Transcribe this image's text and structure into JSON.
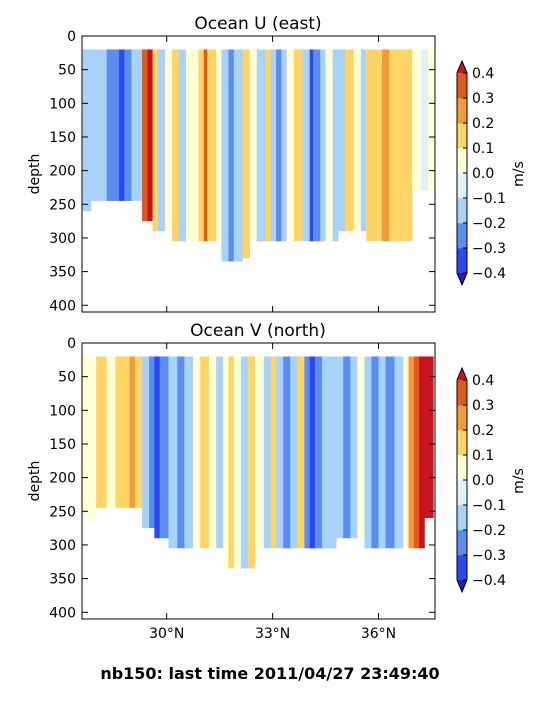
{
  "footer": "nb150: last time 2011/04/27 23:49:40",
  "colors": {
    "levels": [
      -0.4,
      -0.3,
      -0.2,
      -0.1,
      0.0,
      0.1,
      0.2,
      0.3,
      0.4
    ],
    "bins": [
      "#2e48f0",
      "#5a8df0",
      "#a9d2f8",
      "#dff2fb",
      "#ffffd6",
      "#ffd466",
      "#f39a3c",
      "#e05a1c"
    ],
    "under": "#1f1fb0",
    "over": "#c8141e"
  },
  "chart_data": [
    {
      "type": "heatmap",
      "title": "Ocean U (east)",
      "ylabel": "depth",
      "cbar_label": "m/s",
      "ylim": [
        410,
        0
      ],
      "yticks": [
        0,
        50,
        100,
        150,
        200,
        250,
        300,
        350,
        400
      ],
      "xlim": [
        27.6,
        37.6
      ],
      "xticks": [
        {
          "value": 30,
          "label": "30°N"
        },
        {
          "value": 33,
          "label": "33°N"
        },
        {
          "value": 36,
          "label": "36°N"
        }
      ],
      "cbar_ticks": [
        "0.4",
        "0.3",
        "0.2",
        "0.1",
        "0.0",
        "−0.1",
        "−0.2",
        "−0.3",
        "−0.4"
      ],
      "sections": [
        {
          "x": 27.62,
          "value": -0.15,
          "depth": 260
        },
        {
          "x": 27.85,
          "value": -0.12,
          "depth": 245
        },
        {
          "x": 28.3,
          "value": -0.22,
          "depth": 245
        },
        {
          "x": 28.65,
          "value": -0.35,
          "depth": 245
        },
        {
          "x": 28.8,
          "value": -0.25,
          "depth": 245
        },
        {
          "x": 29.0,
          "value": -0.15,
          "depth": 245
        },
        {
          "x": 29.3,
          "value": 0.3,
          "depth": 275
        },
        {
          "x": 29.45,
          "value": 0.42,
          "depth": 275
        },
        {
          "x": 29.6,
          "value": 0.15,
          "depth": 290
        },
        {
          "x": 29.75,
          "value": -0.12,
          "depth": 290
        },
        {
          "x": 29.95,
          "value": 0.0,
          "depth": 290
        },
        {
          "x": 30.15,
          "value": 0.15,
          "depth": 305
        },
        {
          "x": 30.35,
          "value": -0.12,
          "depth": 305
        },
        {
          "x": 30.55,
          "value": 0.05,
          "depth": 305
        },
        {
          "x": 30.9,
          "value": 0.18,
          "depth": 305
        },
        {
          "x": 31.05,
          "value": 0.32,
          "depth": 305
        },
        {
          "x": 31.15,
          "value": 0.15,
          "depth": 305
        },
        {
          "x": 31.4,
          "value": 0.0,
          "depth": 305
        },
        {
          "x": 31.55,
          "value": -0.12,
          "depth": 335
        },
        {
          "x": 31.75,
          "value": -0.25,
          "depth": 335
        },
        {
          "x": 31.9,
          "value": -0.12,
          "depth": 335
        },
        {
          "x": 32.15,
          "value": 0.15,
          "depth": 330
        },
        {
          "x": 32.35,
          "value": 0.05,
          "depth": 305
        },
        {
          "x": 32.55,
          "value": -0.12,
          "depth": 305
        },
        {
          "x": 32.8,
          "value": 0.15,
          "depth": 305
        },
        {
          "x": 32.95,
          "value": -0.15,
          "depth": 305
        },
        {
          "x": 33.1,
          "value": -0.22,
          "depth": 305
        },
        {
          "x": 33.25,
          "value": -0.12,
          "depth": 305
        },
        {
          "x": 33.4,
          "value": 0.0,
          "depth": 305
        },
        {
          "x": 33.6,
          "value": 0.15,
          "depth": 305
        },
        {
          "x": 33.85,
          "value": -0.12,
          "depth": 305
        },
        {
          "x": 34.05,
          "value": -0.35,
          "depth": 305
        },
        {
          "x": 34.15,
          "value": -0.25,
          "depth": 305
        },
        {
          "x": 34.35,
          "value": -0.12,
          "depth": 305
        },
        {
          "x": 34.5,
          "value": 0.0,
          "depth": 305
        },
        {
          "x": 34.7,
          "value": -0.2,
          "depth": 305
        },
        {
          "x": 34.85,
          "value": -0.12,
          "depth": 290
        },
        {
          "x": 35.05,
          "value": 0.15,
          "depth": 290
        },
        {
          "x": 35.3,
          "value": 0.05,
          "depth": 290
        },
        {
          "x": 35.5,
          "value": -0.12,
          "depth": 290
        },
        {
          "x": 35.65,
          "value": 0.15,
          "depth": 305
        },
        {
          "x": 35.9,
          "value": 0.18,
          "depth": 305
        },
        {
          "x": 36.1,
          "value": 0.22,
          "depth": 305
        },
        {
          "x": 36.3,
          "value": 0.15,
          "depth": 305
        },
        {
          "x": 36.6,
          "value": 0.18,
          "depth": 305
        },
        {
          "x": 36.95,
          "value": 0.05,
          "depth": 230
        },
        {
          "x": 37.2,
          "value": -0.05,
          "depth": 230
        },
        {
          "x": 37.4,
          "value": 0.05,
          "depth": 230
        }
      ]
    },
    {
      "type": "heatmap",
      "title": "Ocean V (north)",
      "ylabel": "depth",
      "cbar_label": "m/s",
      "ylim": [
        410,
        0
      ],
      "yticks": [
        0,
        50,
        100,
        150,
        200,
        250,
        300,
        350,
        400
      ],
      "xlim": [
        27.6,
        37.6
      ],
      "xticks": [
        {
          "value": 30,
          "label": "30°N"
        },
        {
          "value": 33,
          "label": "33°N"
        },
        {
          "value": 36,
          "label": "36°N"
        }
      ],
      "cbar_ticks": [
        "0.4",
        "0.3",
        "0.2",
        "0.1",
        "0.0",
        "−0.1",
        "−0.2",
        "−0.3",
        "−0.4"
      ],
      "sections": [
        {
          "x": 27.62,
          "value": 0.05,
          "depth": 260
        },
        {
          "x": 28.0,
          "value": 0.15,
          "depth": 245
        },
        {
          "x": 28.3,
          "value": 0.05,
          "depth": 245
        },
        {
          "x": 28.55,
          "value": 0.15,
          "depth": 245
        },
        {
          "x": 28.95,
          "value": 0.22,
          "depth": 245
        },
        {
          "x": 29.1,
          "value": 0.15,
          "depth": 245
        },
        {
          "x": 29.3,
          "value": -0.12,
          "depth": 275
        },
        {
          "x": 29.5,
          "value": -0.22,
          "depth": 275
        },
        {
          "x": 29.65,
          "value": -0.35,
          "depth": 290
        },
        {
          "x": 29.8,
          "value": -0.22,
          "depth": 290
        },
        {
          "x": 30.05,
          "value": -0.12,
          "depth": 305
        },
        {
          "x": 30.3,
          "value": -0.22,
          "depth": 305
        },
        {
          "x": 30.5,
          "value": -0.12,
          "depth": 305
        },
        {
          "x": 30.75,
          "value": 0.0,
          "depth": 305
        },
        {
          "x": 30.95,
          "value": 0.15,
          "depth": 305
        },
        {
          "x": 31.2,
          "value": 0.05,
          "depth": 305
        },
        {
          "x": 31.4,
          "value": -0.12,
          "depth": 305
        },
        {
          "x": 31.6,
          "value": 0.05,
          "depth": 335
        },
        {
          "x": 31.75,
          "value": 0.18,
          "depth": 335
        },
        {
          "x": 31.9,
          "value": 0.05,
          "depth": 335
        },
        {
          "x": 32.1,
          "value": -0.12,
          "depth": 335
        },
        {
          "x": 32.3,
          "value": 0.15,
          "depth": 335
        },
        {
          "x": 32.5,
          "value": 0.05,
          "depth": 305
        },
        {
          "x": 32.75,
          "value": -0.12,
          "depth": 305
        },
        {
          "x": 32.95,
          "value": 0.15,
          "depth": 305
        },
        {
          "x": 33.1,
          "value": -0.12,
          "depth": 305
        },
        {
          "x": 33.3,
          "value": -0.22,
          "depth": 305
        },
        {
          "x": 33.5,
          "value": -0.12,
          "depth": 305
        },
        {
          "x": 33.7,
          "value": 0.15,
          "depth": 305
        },
        {
          "x": 33.9,
          "value": -0.22,
          "depth": 305
        },
        {
          "x": 34.05,
          "value": -0.35,
          "depth": 305
        },
        {
          "x": 34.2,
          "value": -0.22,
          "depth": 305
        },
        {
          "x": 34.4,
          "value": -0.12,
          "depth": 305
        },
        {
          "x": 34.6,
          "value": -0.2,
          "depth": 305
        },
        {
          "x": 34.8,
          "value": -0.12,
          "depth": 290
        },
        {
          "x": 35.0,
          "value": -0.22,
          "depth": 290
        },
        {
          "x": 35.2,
          "value": -0.12,
          "depth": 290
        },
        {
          "x": 35.4,
          "value": 0.0,
          "depth": 290
        },
        {
          "x": 35.6,
          "value": -0.12,
          "depth": 305
        },
        {
          "x": 35.8,
          "value": -0.22,
          "depth": 305
        },
        {
          "x": 36.0,
          "value": -0.12,
          "depth": 305
        },
        {
          "x": 36.2,
          "value": -0.22,
          "depth": 305
        },
        {
          "x": 36.45,
          "value": -0.12,
          "depth": 305
        },
        {
          "x": 36.7,
          "value": 0.05,
          "depth": 305
        },
        {
          "x": 36.85,
          "value": 0.2,
          "depth": 305
        },
        {
          "x": 37.0,
          "value": 0.32,
          "depth": 305
        },
        {
          "x": 37.15,
          "value": 0.42,
          "depth": 305
        },
        {
          "x": 37.3,
          "value": 0.42,
          "depth": 260
        }
      ]
    }
  ]
}
